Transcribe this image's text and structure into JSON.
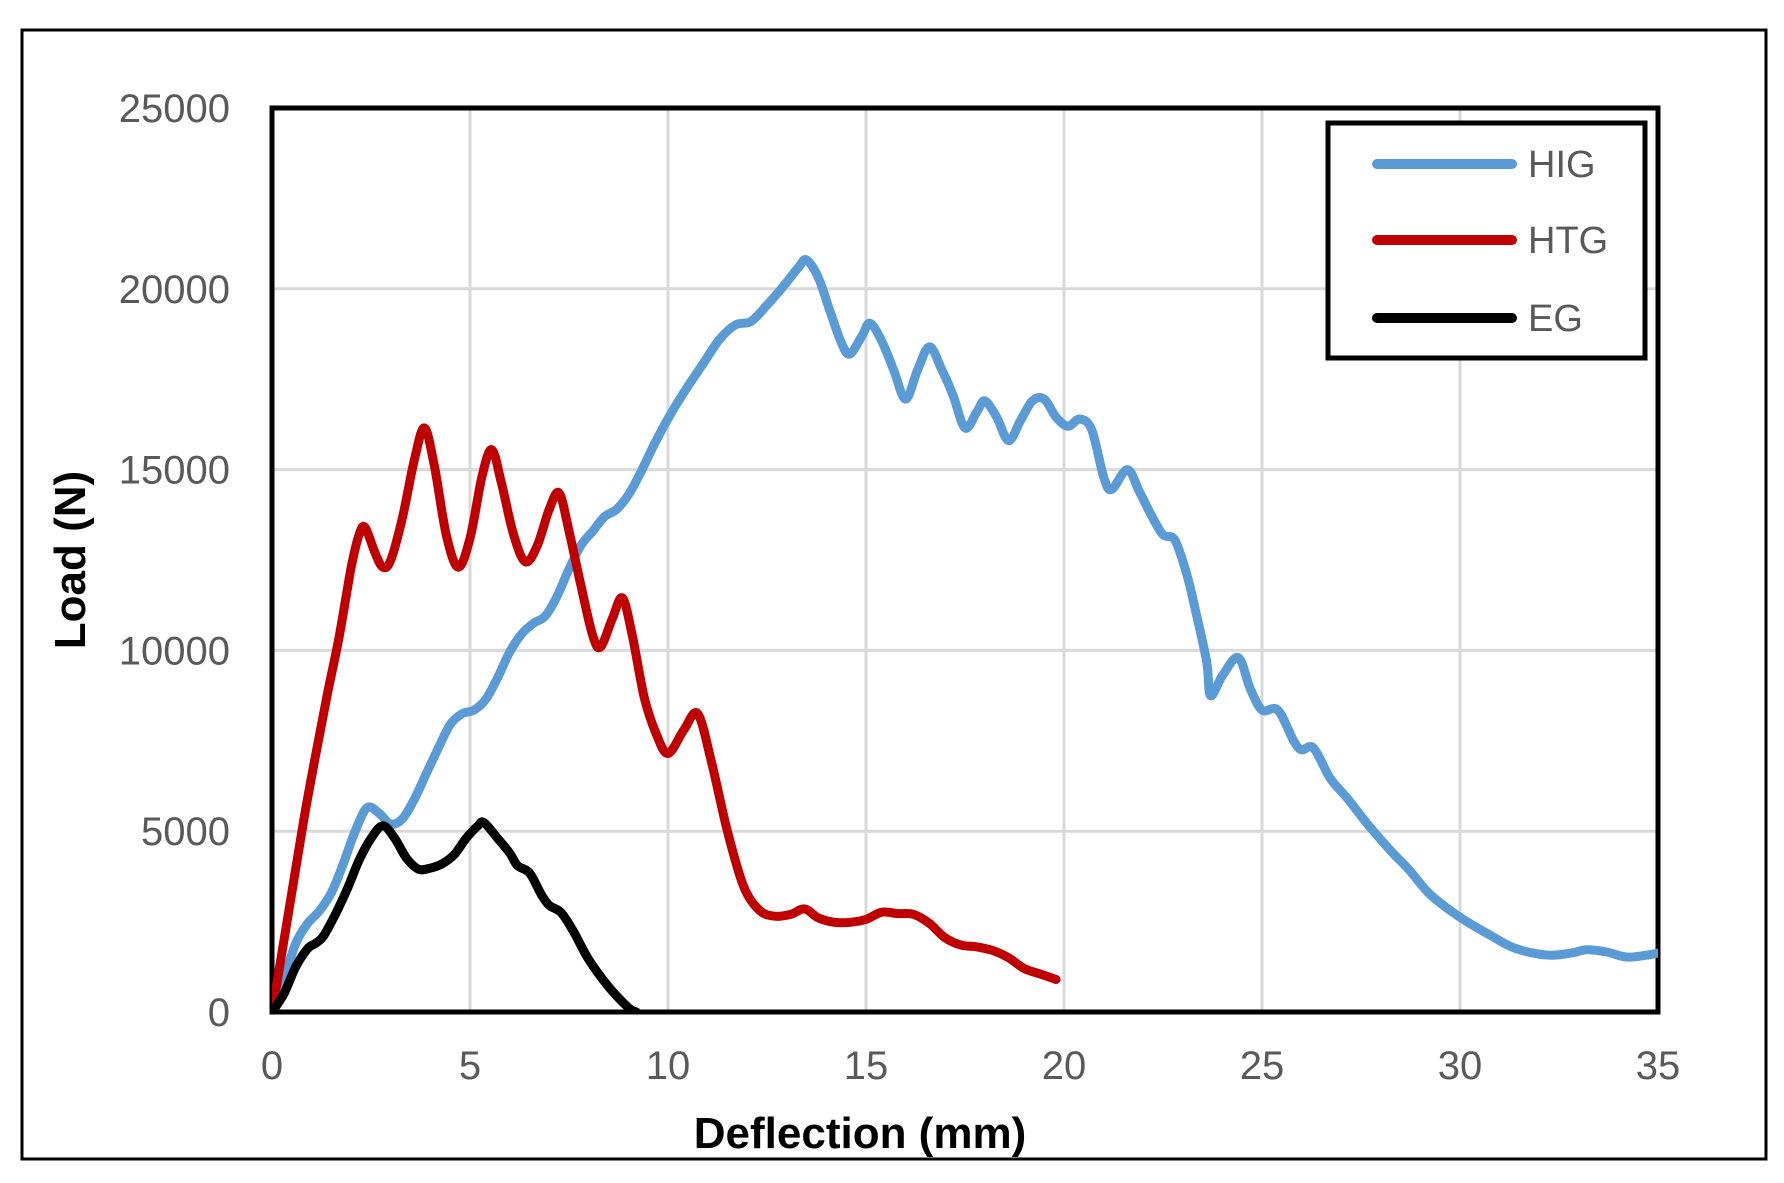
{
  "figure": {
    "background": "#ffffff",
    "outer_border_color": "#000000"
  },
  "styles": {
    "tick_label_color": "#595959",
    "grid_color": "#d9d9d9",
    "axis_frame_color": "#000000",
    "legend_border_color": "#000000",
    "legend_background": "#ffffff"
  },
  "chart_data": {
    "type": "line",
    "title": "",
    "xlabel": "Deflection (mm)",
    "ylabel": "Load (N)",
    "xlim": [
      0,
      35
    ],
    "ylim": [
      0,
      25000
    ],
    "x_ticks": [
      0,
      5,
      10,
      15,
      20,
      25,
      30,
      35
    ],
    "y_ticks": [
      0,
      5000,
      10000,
      15000,
      20000,
      25000
    ],
    "grid": true,
    "legend_position": "top-right",
    "series": [
      {
        "name": "HIG",
        "color": "#5b9bd5",
        "points": [
          [
            0,
            0
          ],
          [
            0.3,
            900
          ],
          [
            0.6,
            1900
          ],
          [
            0.9,
            2450
          ],
          [
            1.2,
            2800
          ],
          [
            1.5,
            3300
          ],
          [
            1.8,
            4100
          ],
          [
            2.1,
            5000
          ],
          [
            2.4,
            5650
          ],
          [
            2.7,
            5500
          ],
          [
            3.0,
            5200
          ],
          [
            3.3,
            5350
          ],
          [
            3.6,
            5900
          ],
          [
            3.9,
            6600
          ],
          [
            4.2,
            7300
          ],
          [
            4.5,
            7950
          ],
          [
            4.8,
            8250
          ],
          [
            5.1,
            8350
          ],
          [
            5.4,
            8650
          ],
          [
            5.7,
            9250
          ],
          [
            6.0,
            9950
          ],
          [
            6.3,
            10450
          ],
          [
            6.6,
            10750
          ],
          [
            6.9,
            10950
          ],
          [
            7.2,
            11500
          ],
          [
            7.5,
            12250
          ],
          [
            7.8,
            12900
          ],
          [
            8.1,
            13300
          ],
          [
            8.4,
            13700
          ],
          [
            8.7,
            13900
          ],
          [
            9.0,
            14300
          ],
          [
            9.3,
            14900
          ],
          [
            9.7,
            15800
          ],
          [
            10.1,
            16600
          ],
          [
            10.5,
            17300
          ],
          [
            10.9,
            17950
          ],
          [
            11.3,
            18600
          ],
          [
            11.7,
            19000
          ],
          [
            12.1,
            19100
          ],
          [
            12.5,
            19550
          ],
          [
            12.9,
            20050
          ],
          [
            13.3,
            20600
          ],
          [
            13.5,
            20800
          ],
          [
            13.8,
            20300
          ],
          [
            14.1,
            19350
          ],
          [
            14.4,
            18450
          ],
          [
            14.6,
            18200
          ],
          [
            14.9,
            18700
          ],
          [
            15.1,
            19050
          ],
          [
            15.4,
            18550
          ],
          [
            15.7,
            17750
          ],
          [
            16.0,
            16950
          ],
          [
            16.3,
            17750
          ],
          [
            16.6,
            18400
          ],
          [
            16.9,
            17800
          ],
          [
            17.2,
            17050
          ],
          [
            17.5,
            16150
          ],
          [
            17.8,
            16600
          ],
          [
            18.0,
            16900
          ],
          [
            18.3,
            16450
          ],
          [
            18.6,
            15800
          ],
          [
            18.9,
            16350
          ],
          [
            19.2,
            16900
          ],
          [
            19.5,
            16950
          ],
          [
            19.8,
            16450
          ],
          [
            20.1,
            16200
          ],
          [
            20.4,
            16400
          ],
          [
            20.7,
            16100
          ],
          [
            21.0,
            14800
          ],
          [
            21.2,
            14450
          ],
          [
            21.6,
            15000
          ],
          [
            21.9,
            14400
          ],
          [
            22.2,
            13750
          ],
          [
            22.5,
            13200
          ],
          [
            22.8,
            13050
          ],
          [
            23.1,
            12100
          ],
          [
            23.3,
            11200
          ],
          [
            23.6,
            9700
          ],
          [
            23.7,
            8750
          ],
          [
            24.0,
            9300
          ],
          [
            24.4,
            9800
          ],
          [
            24.7,
            8950
          ],
          [
            25.0,
            8350
          ],
          [
            25.4,
            8350
          ],
          [
            25.8,
            7500
          ],
          [
            26.0,
            7250
          ],
          [
            26.3,
            7300
          ],
          [
            26.7,
            6500
          ],
          [
            27.0,
            6100
          ],
          [
            27.2,
            5850
          ],
          [
            27.7,
            5150
          ],
          [
            28.3,
            4400
          ],
          [
            28.7,
            3950
          ],
          [
            29.2,
            3300
          ],
          [
            29.7,
            2850
          ],
          [
            30.2,
            2480
          ],
          [
            30.8,
            2100
          ],
          [
            31.3,
            1800
          ],
          [
            31.8,
            1640
          ],
          [
            32.3,
            1570
          ],
          [
            32.8,
            1630
          ],
          [
            33.2,
            1720
          ],
          [
            33.7,
            1660
          ],
          [
            34.2,
            1520
          ],
          [
            34.7,
            1570
          ],
          [
            35,
            1630
          ]
        ]
      },
      {
        "name": "HTG",
        "color": "#c00000",
        "points": [
          [
            0,
            0
          ],
          [
            0.2,
            1300
          ],
          [
            0.5,
            3300
          ],
          [
            0.8,
            5300
          ],
          [
            1.1,
            7100
          ],
          [
            1.4,
            8800
          ],
          [
            1.7,
            10400
          ],
          [
            2.0,
            12300
          ],
          [
            2.2,
            13200
          ],
          [
            2.35,
            13400
          ],
          [
            2.6,
            12700
          ],
          [
            2.8,
            12300
          ],
          [
            3.0,
            12500
          ],
          [
            3.3,
            13700
          ],
          [
            3.6,
            15300
          ],
          [
            3.85,
            16150
          ],
          [
            4.1,
            15100
          ],
          [
            4.4,
            13200
          ],
          [
            4.7,
            12300
          ],
          [
            5.0,
            13100
          ],
          [
            5.3,
            14800
          ],
          [
            5.55,
            15550
          ],
          [
            5.8,
            14600
          ],
          [
            6.1,
            13200
          ],
          [
            6.4,
            12450
          ],
          [
            6.7,
            12900
          ],
          [
            7.0,
            13900
          ],
          [
            7.25,
            14350
          ],
          [
            7.5,
            13300
          ],
          [
            7.8,
            11800
          ],
          [
            8.1,
            10400
          ],
          [
            8.3,
            10100
          ],
          [
            8.6,
            10900
          ],
          [
            8.85,
            11450
          ],
          [
            9.1,
            10400
          ],
          [
            9.4,
            8700
          ],
          [
            9.7,
            7700
          ],
          [
            10.0,
            7150
          ],
          [
            10.4,
            7800
          ],
          [
            10.75,
            8250
          ],
          [
            11.1,
            6900
          ],
          [
            11.5,
            5000
          ],
          [
            11.9,
            3500
          ],
          [
            12.3,
            2820
          ],
          [
            12.7,
            2650
          ],
          [
            13.1,
            2700
          ],
          [
            13.45,
            2850
          ],
          [
            13.8,
            2600
          ],
          [
            14.2,
            2480
          ],
          [
            14.6,
            2480
          ],
          [
            15.0,
            2560
          ],
          [
            15.4,
            2760
          ],
          [
            15.8,
            2720
          ],
          [
            16.2,
            2700
          ],
          [
            16.6,
            2450
          ],
          [
            17.0,
            2050
          ],
          [
            17.4,
            1850
          ],
          [
            17.8,
            1800
          ],
          [
            18.2,
            1700
          ],
          [
            18.6,
            1500
          ],
          [
            19.0,
            1200
          ],
          [
            19.4,
            1050
          ],
          [
            19.8,
            900
          ]
        ]
      },
      {
        "name": "EG",
        "color": "#000000",
        "points": [
          [
            0,
            0
          ],
          [
            0.3,
            500
          ],
          [
            0.6,
            1250
          ],
          [
            0.9,
            1750
          ],
          [
            1.1,
            1900
          ],
          [
            1.3,
            2100
          ],
          [
            1.6,
            2700
          ],
          [
            1.9,
            3400
          ],
          [
            2.2,
            4200
          ],
          [
            2.5,
            4800
          ],
          [
            2.8,
            5150
          ],
          [
            3.1,
            4800
          ],
          [
            3.4,
            4250
          ],
          [
            3.7,
            3950
          ],
          [
            4.0,
            3980
          ],
          [
            4.3,
            4100
          ],
          [
            4.6,
            4350
          ],
          [
            4.9,
            4800
          ],
          [
            5.2,
            5150
          ],
          [
            5.35,
            5240
          ],
          [
            5.7,
            4800
          ],
          [
            6.0,
            4400
          ],
          [
            6.2,
            4050
          ],
          [
            6.5,
            3850
          ],
          [
            6.8,
            3250
          ],
          [
            7.0,
            2950
          ],
          [
            7.3,
            2750
          ],
          [
            7.6,
            2250
          ],
          [
            8.0,
            1450
          ],
          [
            8.5,
            700
          ],
          [
            9.0,
            120
          ],
          [
            9.2,
            0
          ]
        ]
      }
    ]
  }
}
